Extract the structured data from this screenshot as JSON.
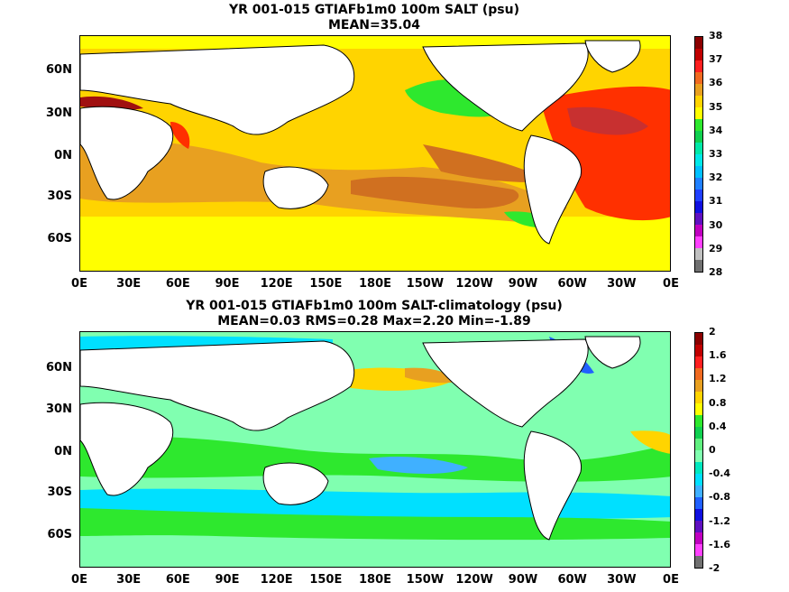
{
  "panels": [
    {
      "title1": "YR 001-015 GTIAFb1m0 100m SALT (psu)",
      "title2": "MEAN=35.04",
      "colorbar_labels": [
        "38",
        "37",
        "36",
        "35",
        "34",
        "33",
        "32",
        "31",
        "30",
        "29",
        "28"
      ],
      "colorbar_colors": [
        "#8b0000",
        "#c00000",
        "#ff2020",
        "#f06a20",
        "#e8a020",
        "#ffd400",
        "#ffff00",
        "#2ee82e",
        "#10d050",
        "#00e8a8",
        "#00e8e8",
        "#00c0ff",
        "#2080ff",
        "#2040ff",
        "#1010e0",
        "#6010c0",
        "#c000c0",
        "#ff40ff",
        "#c0c0c0",
        "#707070"
      ]
    },
    {
      "title1": "YR 001-015 GTIAFb1m0 100m SALT-climatology (psu)",
      "title2": "MEAN=0.03   RMS=0.28   Max=2.20   Min=-1.89",
      "colorbar_labels": [
        "2",
        "1.6",
        "1.2",
        "0.8",
        "0.4",
        "0",
        "-0.4",
        "-0.8",
        "-1.2",
        "-1.6",
        "-2"
      ],
      "colorbar_colors": [
        "#8b0000",
        "#c00000",
        "#ff2020",
        "#f06a20",
        "#e8a020",
        "#ffd400",
        "#ffff00",
        "#2ee82e",
        "#10d050",
        "#60f080",
        "#80ffb0",
        "#00e8c0",
        "#00e0ff",
        "#40b0ff",
        "#2060ff",
        "#1010e0",
        "#6010c0",
        "#c000c0",
        "#ff40ff",
        "#707070"
      ]
    }
  ],
  "y_labels": [
    "60N",
    "30N",
    "0N",
    "30S",
    "60S"
  ],
  "x_labels": [
    "0E",
    "30E",
    "60E",
    "90E",
    "120E",
    "150E",
    "180E",
    "150W",
    "120W",
    "90W",
    "60W",
    "30W",
    "0E"
  ],
  "colors": {
    "land": "#ffffff",
    "top_base": "#ffd400",
    "top_yellow": "#ffff00",
    "top_orange": "#e8a020",
    "top_darkorange": "#d07020",
    "top_red": "#ff3000",
    "top_darkred": "#c00000",
    "top_green": "#2ee82e",
    "bot_base": "#80ffb0",
    "bot_green": "#2ee82e",
    "bot_cyan": "#00e0ff",
    "bot_blue": "#40b0ff",
    "bot_yellow": "#ffd400",
    "bot_orange": "#e8a020"
  }
}
